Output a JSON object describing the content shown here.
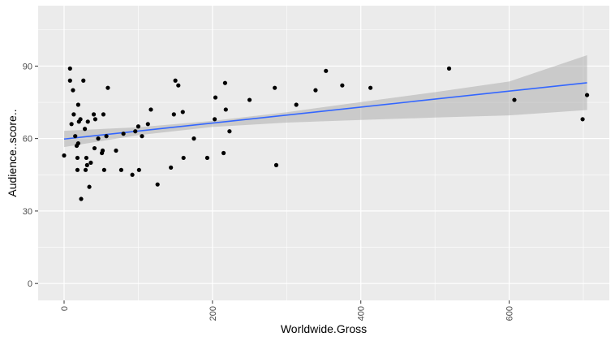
{
  "chart_data": {
    "type": "scatter",
    "xlabel": "Worldwide.Gross",
    "ylabel": "Audience..score..",
    "xlim": [
      -35,
      735
    ],
    "ylim": [
      -7,
      115
    ],
    "x_ticks": [
      0,
      200,
      400,
      600
    ],
    "x_tick_labels": [
      "0",
      "200",
      "400",
      "600"
    ],
    "y_ticks": [
      0,
      30,
      60,
      90
    ],
    "y_tick_labels": [
      "0",
      "30",
      "60",
      "90"
    ],
    "grid": true,
    "legend": "none",
    "points": [
      [
        0,
        53
      ],
      [
        8,
        89
      ],
      [
        8,
        84
      ],
      [
        10,
        66
      ],
      [
        12,
        80
      ],
      [
        13,
        70
      ],
      [
        15,
        61
      ],
      [
        17,
        57
      ],
      [
        18,
        47
      ],
      [
        18,
        52
      ],
      [
        19,
        58
      ],
      [
        19,
        74
      ],
      [
        20,
        67
      ],
      [
        22,
        68
      ],
      [
        23,
        35
      ],
      [
        26,
        84
      ],
      [
        28,
        64
      ],
      [
        29,
        47
      ],
      [
        30,
        52
      ],
      [
        31,
        49
      ],
      [
        32,
        67
      ],
      [
        34,
        40
      ],
      [
        36,
        50
      ],
      [
        40,
        70
      ],
      [
        41,
        56
      ],
      [
        42,
        68
      ],
      [
        46,
        60
      ],
      [
        51,
        54
      ],
      [
        52,
        55
      ],
      [
        53,
        70
      ],
      [
        54,
        47
      ],
      [
        57,
        61
      ],
      [
        59,
        81
      ],
      [
        70,
        55
      ],
      [
        77,
        47
      ],
      [
        80,
        62
      ],
      [
        92,
        45
      ],
      [
        96,
        63
      ],
      [
        100,
        65
      ],
      [
        101,
        47
      ],
      [
        105,
        61
      ],
      [
        113,
        66
      ],
      [
        117,
        72
      ],
      [
        126,
        41
      ],
      [
        144,
        48
      ],
      [
        148,
        70
      ],
      [
        150,
        84
      ],
      [
        154,
        82
      ],
      [
        160,
        71
      ],
      [
        161,
        52
      ],
      [
        175,
        60
      ],
      [
        193,
        52
      ],
      [
        203,
        68
      ],
      [
        204,
        77
      ],
      [
        215,
        54
      ],
      [
        217,
        83
      ],
      [
        218,
        72
      ],
      [
        223,
        63
      ],
      [
        250,
        76
      ],
      [
        284,
        81
      ],
      [
        286,
        49
      ],
      [
        313,
        74
      ],
      [
        339,
        80
      ],
      [
        353,
        88
      ],
      [
        375,
        82
      ],
      [
        413,
        81
      ],
      [
        519,
        89
      ],
      [
        607,
        76
      ],
      [
        699,
        68
      ],
      [
        705,
        78
      ]
    ],
    "fit_line": {
      "method": "lm",
      "x": [
        0,
        705
      ],
      "y": [
        59.8,
        83.1
      ]
    },
    "confidence_band": {
      "x": [
        0,
        100,
        200,
        300,
        400,
        500,
        600,
        705
      ],
      "lower": [
        56.5,
        61.4,
        64.8,
        66.6,
        67.7,
        68.7,
        69.6,
        71.8
      ],
      "upper": [
        63.2,
        64.7,
        67.3,
        70.9,
        75.1,
        79.2,
        83.6,
        94.5
      ]
    },
    "colors": {
      "panel": "#ebebeb",
      "grid_major": "#ffffff",
      "point": "#000000",
      "fit_line": "#3366ff",
      "band": "#999999"
    }
  }
}
